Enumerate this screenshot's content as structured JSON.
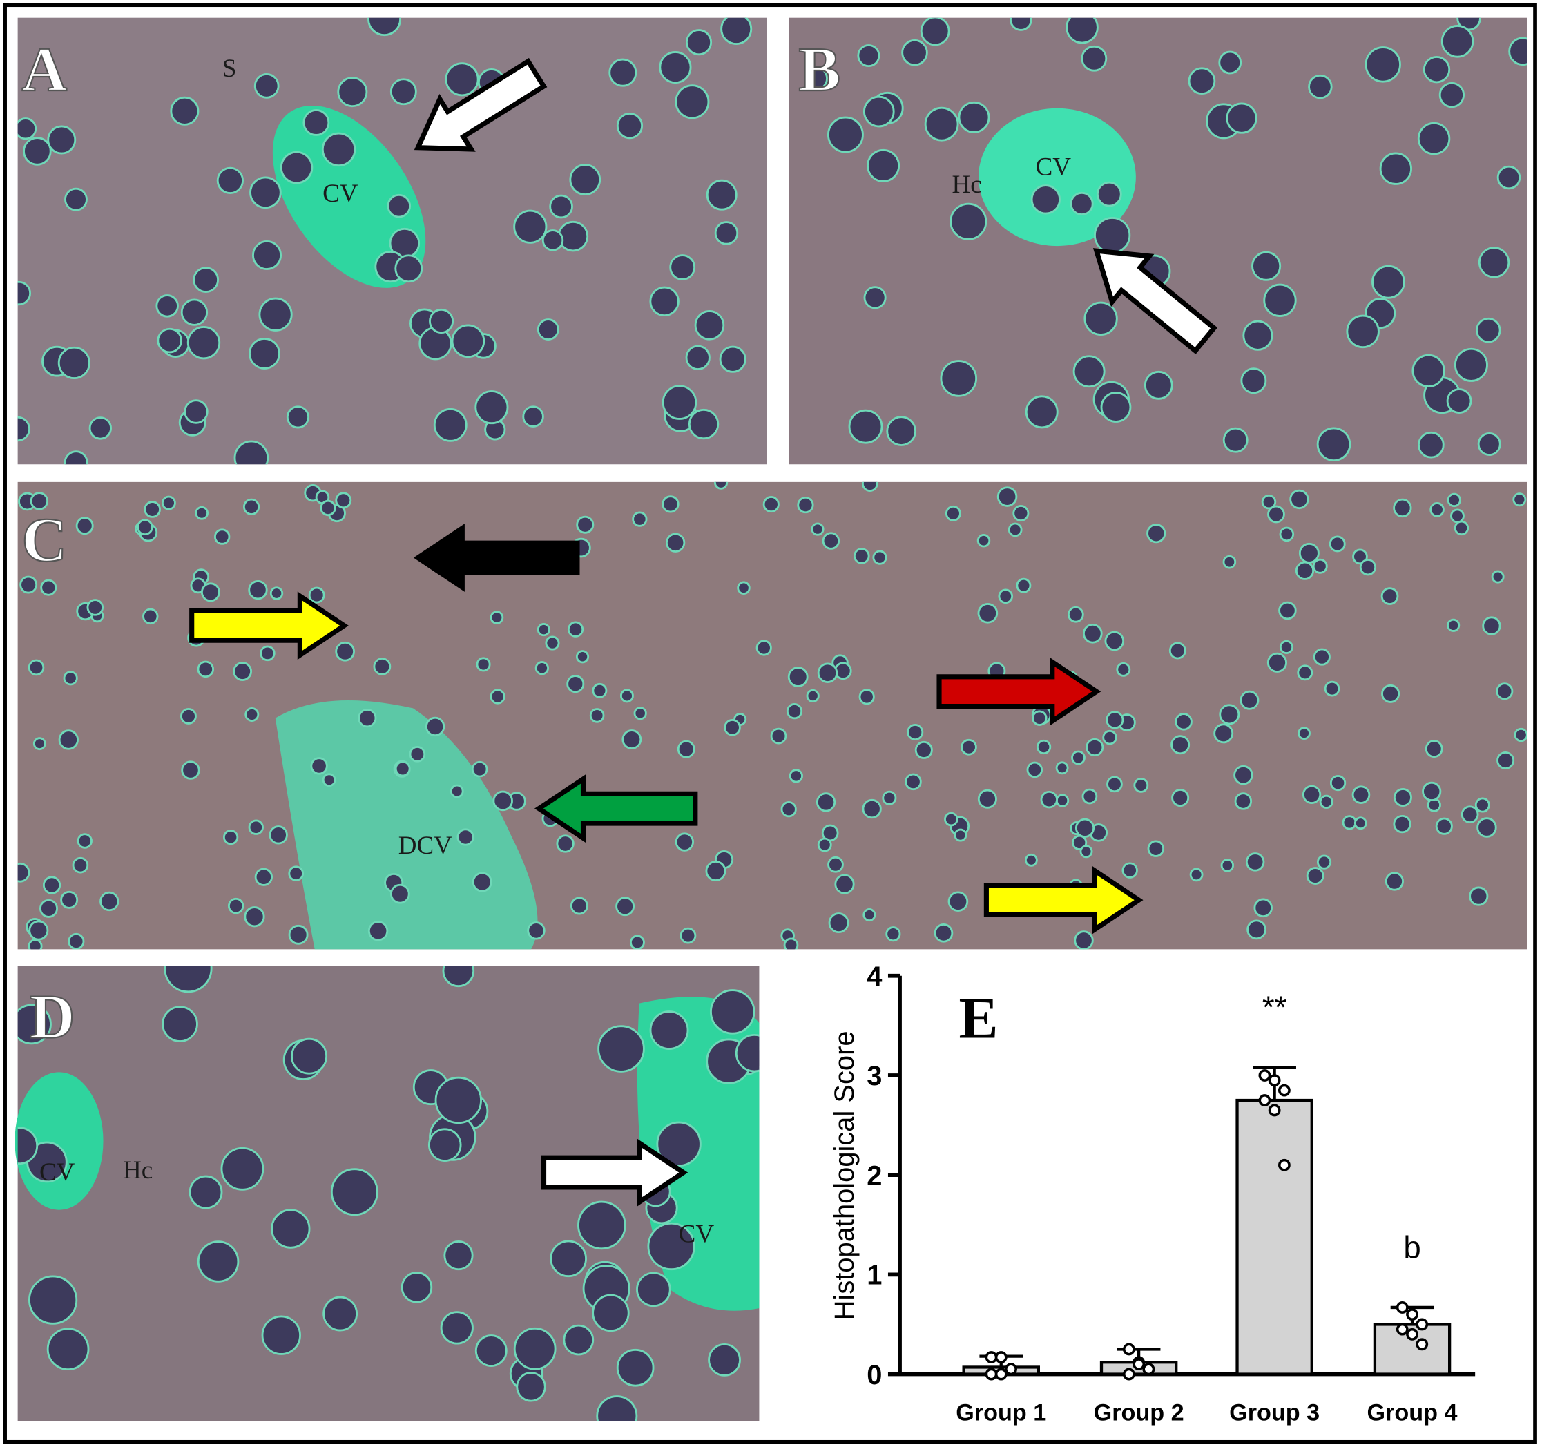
{
  "panels": [
    {
      "letter": "A",
      "labels": [
        "S",
        "CV"
      ]
    },
    {
      "letter": "B",
      "labels": [
        "Hc",
        "CV"
      ]
    },
    {
      "letter": "C",
      "labels": [
        "DCV"
      ]
    },
    {
      "letter": "D",
      "labels": [
        "CV",
        "Hc",
        "CV"
      ]
    },
    {
      "letter": "E"
    }
  ],
  "chart_data": {
    "type": "bar",
    "y_label": "Histopathological Score",
    "categories": [
      "Group 1",
      "Group 2",
      "Group 3",
      "Group 4"
    ],
    "values": [
      0.07,
      0.12,
      2.75,
      0.5
    ],
    "errors": [
      0.11,
      0.13,
      0.33,
      0.17
    ],
    "points": [
      [
        0.17,
        0.17,
        0.05,
        0,
        0,
        0.05
      ],
      [
        0.25,
        0.12,
        0.05,
        0,
        0.1,
        0.05
      ],
      [
        3.0,
        2.95,
        2.85,
        2.75,
        2.65,
        2.1
      ],
      [
        0.67,
        0.6,
        0.5,
        0.45,
        0.4,
        0.3
      ]
    ],
    "color": "#d3d3d3",
    "annotations": [
      {
        "category": "Group 3",
        "text": "**"
      },
      {
        "category": "Group 4",
        "text": "b"
      }
    ],
    "ylim": [
      0,
      4
    ],
    "yticks": [
      0,
      1,
      2,
      3,
      4
    ]
  }
}
